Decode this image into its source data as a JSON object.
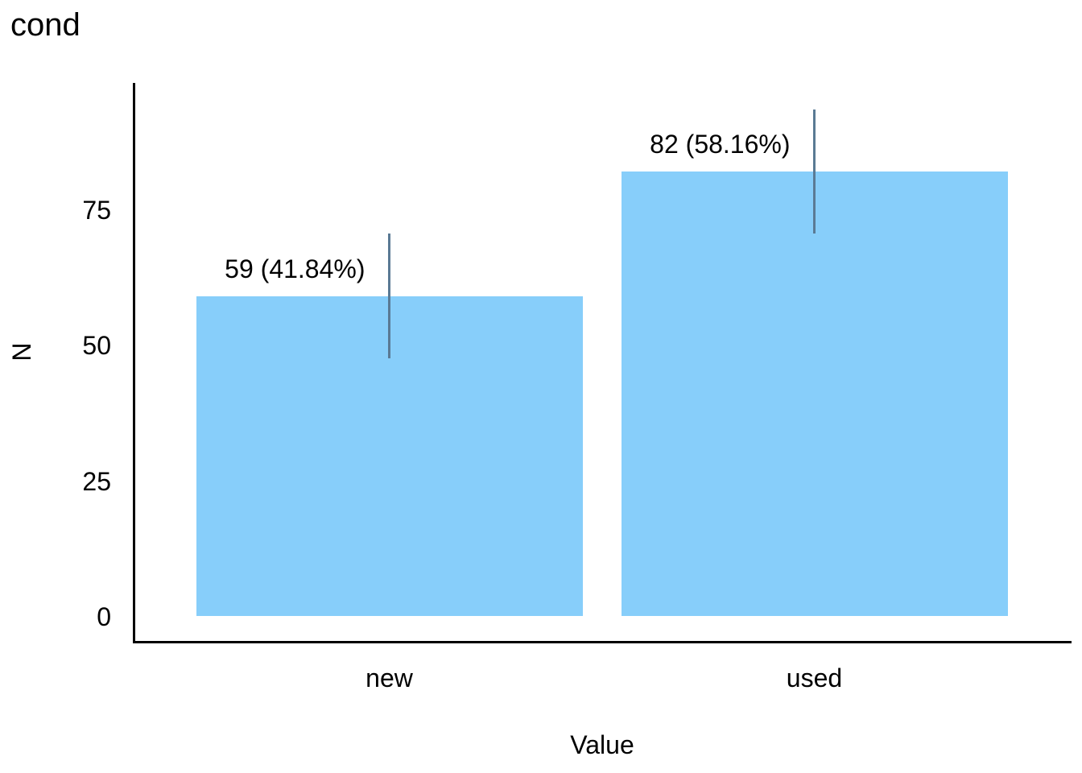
{
  "chart": {
    "title": "cond"
  },
  "chart_data": {
    "type": "bar",
    "title": "cond",
    "categories": [
      "new",
      "used"
    ],
    "values": [
      59,
      82
    ],
    "percentages": [
      41.84,
      58.16
    ],
    "bar_labels": [
      "59 (41.84%)",
      "82 (58.16%)"
    ],
    "error_bars": [
      {
        "lower": 47.5,
        "upper": 70.5
      },
      {
        "lower": 70.5,
        "upper": 93.5
      }
    ],
    "xlabel": "Value",
    "ylabel": "N",
    "yticks": [
      0,
      25,
      50,
      75
    ],
    "ytick_labels": [
      "0",
      "25",
      "50",
      "75"
    ],
    "ylim": [
      0,
      98.8
    ],
    "grid": false,
    "legend": false,
    "colors": {
      "bar_fill": "#87CEFA",
      "error_bar": "#5A7A94",
      "axis": "#000000",
      "text": "#000000"
    }
  }
}
